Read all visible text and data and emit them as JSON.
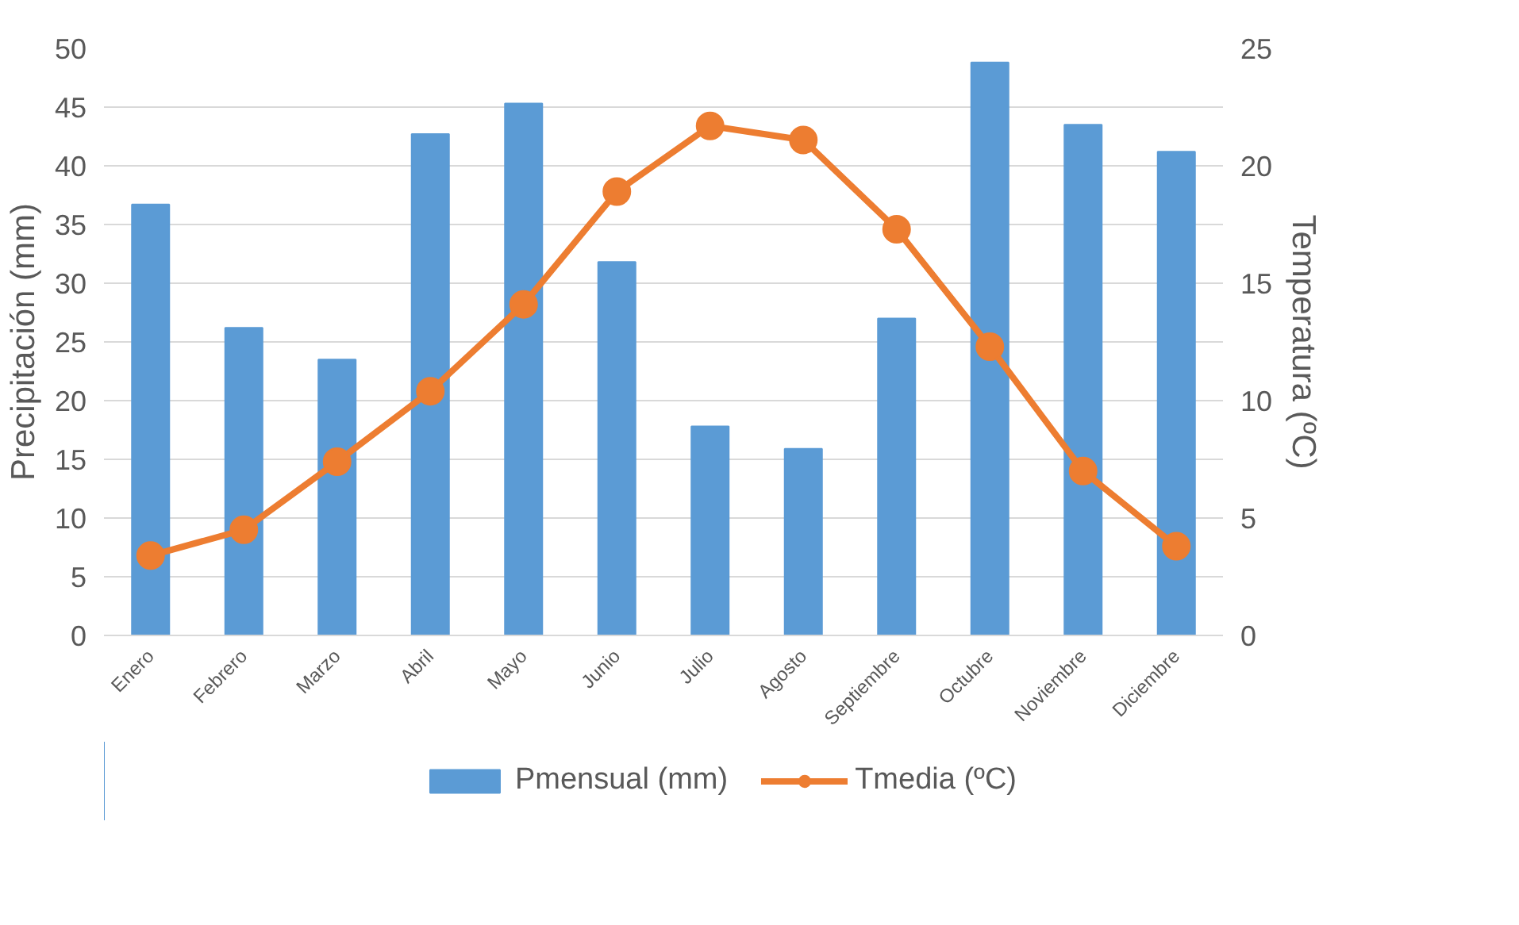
{
  "chart_data": {
    "type": "bar",
    "categories": [
      "Enero",
      "Febrero",
      "Marzo",
      "Abril",
      "Mayo",
      "Junio",
      "Julio",
      "Agosto",
      "Septiembre",
      "Octubre",
      "Noviembre",
      "Diciembre"
    ],
    "ylabel": "Precipitación (mm)",
    "y2label": "Temperatura (ºC)",
    "ylim": [
      0,
      50
    ],
    "yticks": [
      0,
      5,
      10,
      15,
      20,
      25,
      30,
      35,
      40,
      45,
      50
    ],
    "y2lim": [
      0,
      25
    ],
    "y2ticks": [
      0,
      5,
      10,
      15,
      20,
      25
    ],
    "grid": "y",
    "legend": "bottom",
    "series": [
      {
        "name": "Pmensual (mm)",
        "type": "bar",
        "color": "#5b9bd5",
        "values": [
          36.7,
          26.2,
          23.5,
          42.7,
          45.3,
          31.8,
          17.8,
          15.9,
          27.0,
          48.8,
          43.5,
          41.2
        ]
      },
      {
        "name": "Tmedia (ºC)",
        "type": "line",
        "axis": "y2",
        "color": "#ed7d31",
        "marker": "circle",
        "values": [
          3.4,
          4.5,
          7.4,
          10.4,
          14.1,
          18.9,
          21.7,
          21.1,
          17.3,
          12.3,
          7.0,
          3.8
        ]
      }
    ]
  }
}
